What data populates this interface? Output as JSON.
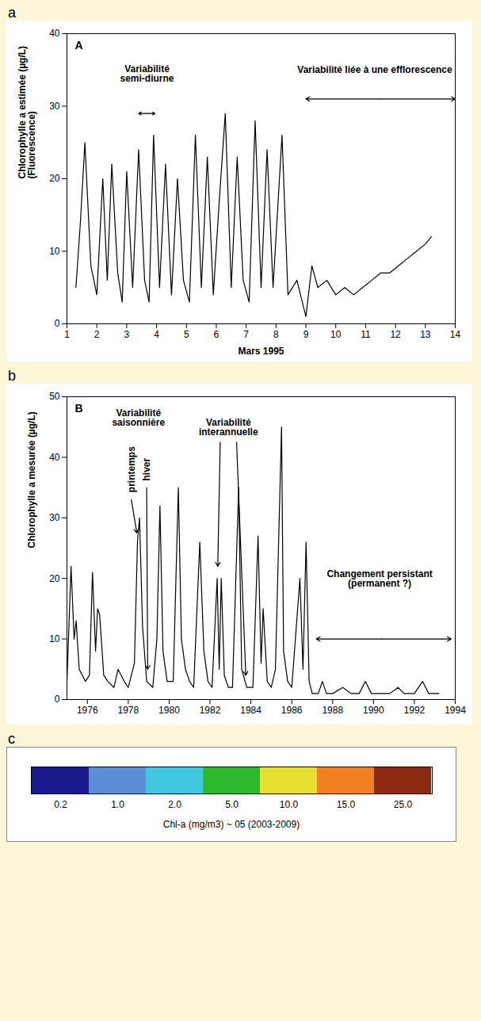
{
  "chart_data": [
    {
      "type": "line",
      "panel": "a",
      "panel_label": "A",
      "xlabel": "Mars 1995",
      "ylabel": "Chlorophylle a estimée (µg/L)\n(Fluorescence)",
      "x": [
        1.3,
        1.45,
        1.6,
        1.8,
        2.0,
        2.2,
        2.35,
        2.5,
        2.7,
        2.85,
        3.0,
        3.2,
        3.4,
        3.6,
        3.75,
        3.9,
        4.1,
        4.3,
        4.5,
        4.7,
        4.9,
        5.1,
        5.3,
        5.5,
        5.7,
        5.9,
        6.1,
        6.3,
        6.5,
        6.7,
        6.9,
        7.1,
        7.3,
        7.5,
        7.7,
        7.9,
        8.2,
        8.4,
        8.7,
        9.0,
        9.2,
        9.4,
        9.7,
        10.0,
        10.3,
        10.6,
        10.9,
        11.2,
        11.5,
        11.8,
        12.1,
        12.4,
        12.7,
        13.0,
        13.2
      ],
      "series": [
        {
          "color": "#000000",
          "values": [
            5,
            14,
            25,
            8,
            4,
            20,
            6,
            22,
            7,
            3,
            21,
            5,
            24,
            6,
            3,
            26,
            5,
            22,
            4,
            20,
            6,
            3,
            26,
            5,
            23,
            4,
            17,
            29,
            5,
            23,
            6,
            3,
            28,
            5,
            24,
            5,
            26,
            4,
            6,
            1,
            8,
            5,
            6,
            4,
            5,
            4,
            5,
            6,
            7,
            7,
            8,
            9,
            10,
            11,
            12
          ]
        }
      ],
      "xlim": [
        1,
        14
      ],
      "xticks": [
        1,
        2,
        3,
        4,
        5,
        6,
        7,
        8,
        9,
        10,
        11,
        12,
        13,
        14
      ],
      "ylim": [
        0,
        40
      ],
      "yticks": [
        0,
        10,
        20,
        30,
        40
      ],
      "annotations": [
        "Variabilité\nsemi-diurne",
        "Variabilité liée à une efflorescence"
      ]
    },
    {
      "type": "line",
      "panel": "b",
      "panel_label": "B",
      "ylabel": "Chlorophylle a mesurée (µg/L)",
      "x": [
        1975.0,
        1975.2,
        1975.35,
        1975.45,
        1975.6,
        1975.9,
        1976.1,
        1976.25,
        1976.4,
        1976.5,
        1976.6,
        1976.8,
        1977.0,
        1977.3,
        1977.5,
        1977.8,
        1978.0,
        1978.3,
        1978.45,
        1978.55,
        1978.7,
        1978.9,
        1979.2,
        1979.4,
        1979.55,
        1979.7,
        1979.9,
        1980.2,
        1980.45,
        1980.6,
        1980.8,
        1981.0,
        1981.2,
        1981.5,
        1981.7,
        1981.9,
        1982.1,
        1982.35,
        1982.45,
        1982.55,
        1982.7,
        1982.9,
        1983.1,
        1983.4,
        1983.55,
        1983.8,
        1984.1,
        1984.35,
        1984.5,
        1984.6,
        1984.8,
        1985.0,
        1985.2,
        1985.5,
        1985.6,
        1985.8,
        1986.0,
        1986.4,
        1986.55,
        1986.7,
        1986.85,
        1987.0,
        1987.3,
        1987.5,
        1987.7,
        1988.0,
        1988.5,
        1988.9,
        1989.3,
        1989.6,
        1989.9,
        1990.4,
        1990.8,
        1991.2,
        1991.5,
        1992.0,
        1992.4,
        1992.7,
        1993.2
      ],
      "series": [
        {
          "color": "#000000",
          "values": [
            3,
            22,
            10,
            13,
            5,
            3,
            4,
            21,
            8,
            15,
            14,
            4,
            3,
            2,
            5,
            3,
            2,
            6,
            26,
            30,
            12,
            3,
            2,
            10,
            32,
            8,
            3,
            3,
            35,
            10,
            5,
            3,
            2,
            26,
            8,
            3,
            2,
            20,
            5,
            20,
            4,
            2,
            2,
            35,
            5,
            2,
            2,
            27,
            6,
            15,
            3,
            2,
            5,
            45,
            8,
            3,
            2,
            20,
            5,
            26,
            3,
            1,
            1,
            3,
            1,
            1,
            2,
            1,
            1,
            3,
            1,
            1,
            1,
            2,
            1,
            1,
            3,
            1,
            1
          ]
        }
      ],
      "xlim": [
        1975,
        1994
      ],
      "xticks": [
        1976,
        1978,
        1980,
        1982,
        1984,
        1986,
        1988,
        1990,
        1992,
        1994
      ],
      "ylim": [
        0,
        50
      ],
      "yticks": [
        0,
        10,
        20,
        30,
        40,
        50
      ],
      "annotations": [
        "Variabilité\nsaisonnière",
        "printemps",
        "hiver",
        "Variabilité\ninterannuelle",
        "Changement persistant\n(permanent ?)"
      ]
    },
    {
      "type": "map",
      "panel": "c",
      "colorbar": {
        "label": "Chl-a (mg/m3) ~ 05 (2003-2009)",
        "ticks": [
          {
            "value": 0.2,
            "label": "0.2"
          },
          {
            "value": 1,
            "label": "1.0"
          },
          {
            "value": 2,
            "label": "2.0"
          },
          {
            "value": 5,
            "label": "5.0"
          },
          {
            "value": 10,
            "label": "10.0"
          },
          {
            "value": 15,
            "label": "15.0"
          },
          {
            "value": 25,
            "label": "25.0"
          }
        ],
        "colors": [
          "#1a1a8c",
          "#5a8fd8",
          "#40c8e0",
          "#2db82d",
          "#e8e030",
          "#f08020",
          "#8b2a10"
        ]
      }
    }
  ]
}
